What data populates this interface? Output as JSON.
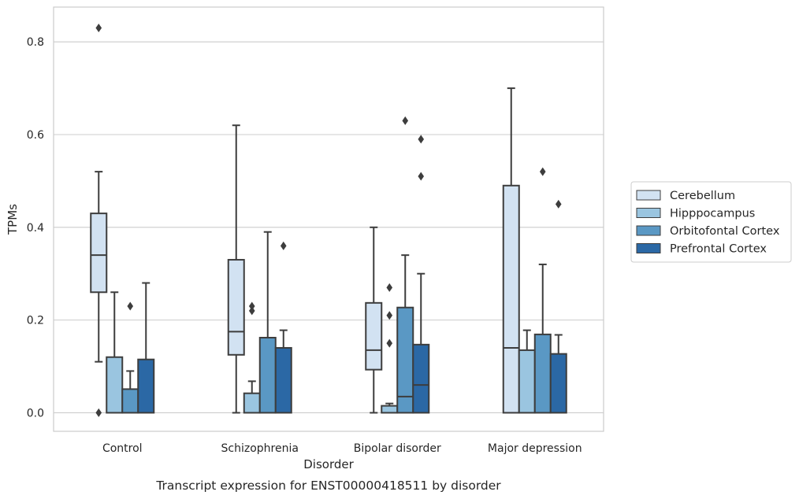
{
  "chart_data": {
    "type": "box",
    "xlabel": "Disorder",
    "ylabel": "TPMs",
    "caption": "Transcript expression for ENST00000418511 by disorder",
    "ylim": [
      -0.04,
      0.875
    ],
    "yticks": [
      "0.0",
      "0.2",
      "0.4",
      "0.6",
      "0.8"
    ],
    "grid": "horizontal",
    "legend_position": "right",
    "categories": [
      "Control",
      "Schizophrenia",
      "Bipolar disorder",
      "Major depression"
    ],
    "series": [
      {
        "name": "Cerebellum",
        "color": "#d2e2f2",
        "boxes": [
          {
            "q1": 0.26,
            "median": 0.34,
            "q3": 0.43,
            "whislo": 0.11,
            "whishi": 0.52,
            "fliers": [
              0.83,
              0.0
            ]
          },
          {
            "q1": 0.125,
            "median": 0.175,
            "q3": 0.33,
            "whislo": 0.0,
            "whishi": 0.62,
            "fliers": []
          },
          {
            "q1": 0.093,
            "median": 0.135,
            "q3": 0.237,
            "whislo": 0.0,
            "whishi": 0.4,
            "fliers": []
          },
          {
            "q1": 0.0,
            "median": 0.14,
            "q3": 0.49,
            "whislo": 0.0,
            "whishi": 0.7,
            "fliers": []
          }
        ]
      },
      {
        "name": "Hipppocampus",
        "color": "#9ac5e0",
        "boxes": [
          {
            "q1": 0.0,
            "median": 0.0,
            "q3": 0.12,
            "whislo": 0.0,
            "whishi": 0.26,
            "fliers": []
          },
          {
            "q1": 0.0,
            "median": 0.0,
            "q3": 0.042,
            "whislo": 0.0,
            "whishi": 0.068,
            "fliers": [
              0.23,
              0.22
            ]
          },
          {
            "q1": 0.0,
            "median": 0.0,
            "q3": 0.015,
            "whislo": 0.0,
            "whishi": 0.02,
            "fliers": [
              0.27,
              0.21,
              0.15
            ]
          },
          {
            "q1": 0.0,
            "median": 0.0,
            "q3": 0.135,
            "whislo": 0.0,
            "whishi": 0.178,
            "fliers": []
          }
        ]
      },
      {
        "name": "Orbitofontal Cortex",
        "color": "#5a98c4",
        "boxes": [
          {
            "q1": 0.0,
            "median": 0.0,
            "q3": 0.051,
            "whislo": 0.0,
            "whishi": 0.09,
            "fliers": [
              0.23
            ]
          },
          {
            "q1": 0.0,
            "median": 0.0,
            "q3": 0.162,
            "whislo": 0.0,
            "whishi": 0.39,
            "fliers": []
          },
          {
            "q1": 0.0,
            "median": 0.035,
            "q3": 0.227,
            "whislo": 0.0,
            "whishi": 0.34,
            "fliers": [
              0.63
            ]
          },
          {
            "q1": 0.0,
            "median": 0.0,
            "q3": 0.169,
            "whislo": 0.0,
            "whishi": 0.32,
            "fliers": [
              0.52
            ]
          }
        ]
      },
      {
        "name": "Prefrontal Cortex",
        "color": "#2b68a5",
        "boxes": [
          {
            "q1": 0.0,
            "median": 0.0,
            "q3": 0.115,
            "whislo": 0.0,
            "whishi": 0.28,
            "fliers": []
          },
          {
            "q1": 0.0,
            "median": 0.0,
            "q3": 0.14,
            "whislo": 0.0,
            "whishi": 0.178,
            "fliers": [
              0.36
            ]
          },
          {
            "q1": 0.0,
            "median": 0.06,
            "q3": 0.147,
            "whislo": 0.0,
            "whishi": 0.3,
            "fliers": [
              0.59,
              0.51
            ]
          },
          {
            "q1": 0.0,
            "median": 0.0,
            "q3": 0.127,
            "whislo": 0.0,
            "whishi": 0.168,
            "fliers": [
              0.45
            ]
          }
        ]
      }
    ]
  }
}
